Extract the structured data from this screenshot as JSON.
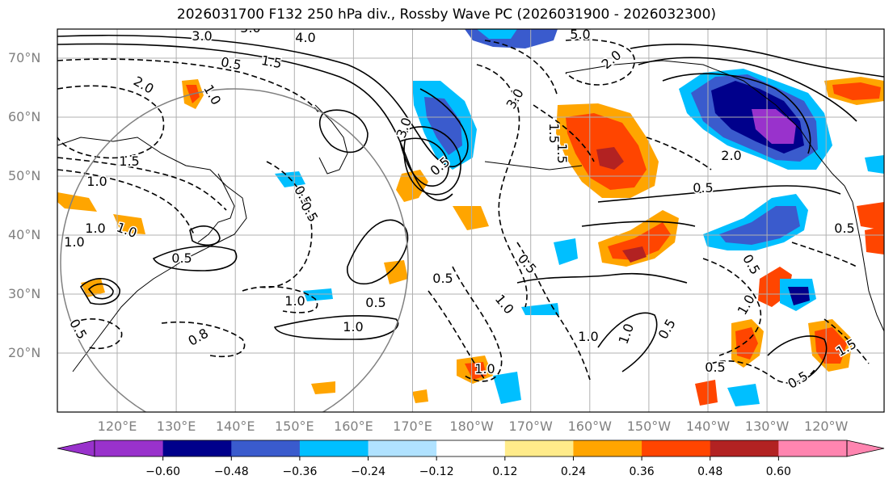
{
  "title": "2026031700 F132 250 hPa div., Rossby Wave PC (2026031900 - 2026032300)",
  "lat_labels": [
    "70°N",
    "60°N",
    "50°N",
    "40°N",
    "30°N",
    "20°N"
  ],
  "lon_labels": [
    "120°E",
    "130°E",
    "140°E",
    "150°E",
    "160°E",
    "170°E",
    "180°W",
    "170°W",
    "160°W",
    "150°W",
    "140°W",
    "130°W",
    "120°W"
  ],
  "colorbar": {
    "ticks": [
      "−0.60",
      "−0.48",
      "−0.36",
      "−0.24",
      "−0.12",
      "0.12",
      "0.24",
      "0.36",
      "0.48",
      "0.60"
    ],
    "colors": [
      "#9932cc",
      "#00008b",
      "#3a5bcd",
      "#00bfff",
      "#b0e2ff",
      "#ffffff",
      "#ffeb8a",
      "#ffa500",
      "#ff4500",
      "#b22222",
      "#ff85b0"
    ]
  },
  "contour_labels": [
    "3.0",
    "5.0",
    "4.0",
    "1.5",
    "0.5",
    "2.0",
    "1.0",
    "5.0",
    "2.0",
    "3.0",
    "3.0",
    "2.0",
    "0.5",
    "1.5",
    "1.0",
    "0.5",
    "0.5",
    "1.0",
    "1.0",
    "0.5",
    "1.0",
    "0.5",
    "1.0",
    "0.5",
    "0.5",
    "1.0",
    "1.5",
    "0.5",
    "1.5",
    "0.5",
    "1.0",
    "1.0",
    "0.5",
    "1.0",
    "0.5",
    "0.5",
    "0.5",
    "1.5",
    "1.0",
    "0.5",
    "0.8",
    "1.0"
  ]
}
